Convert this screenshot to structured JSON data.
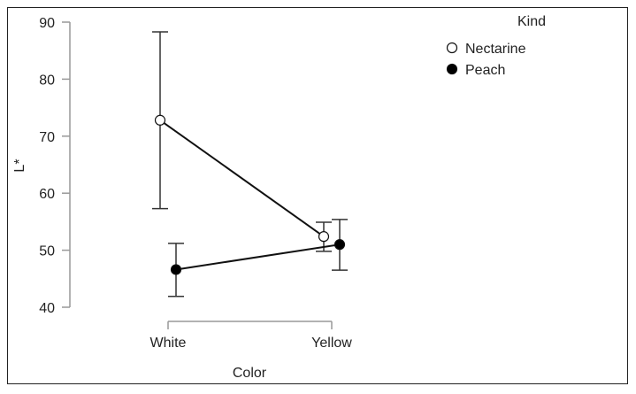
{
  "chart_data": {
    "type": "line",
    "title": "",
    "xlabel": "Color",
    "ylabel": "L*",
    "categories": [
      "White",
      "Yellow"
    ],
    "ylim": [
      40,
      90
    ],
    "yticks": [
      40,
      50,
      60,
      70,
      80,
      90
    ],
    "grid": false,
    "legend": {
      "title": "Kind",
      "placement": "top-right"
    },
    "series": [
      {
        "name": "Nectarine",
        "marker": "open-circle",
        "values": [
          72.8,
          52.4
        ],
        "error_low": [
          57.3,
          49.8
        ],
        "error_high": [
          88.3,
          54.9
        ]
      },
      {
        "name": "Peach",
        "marker": "filled-circle",
        "values": [
          46.6,
          51.0
        ],
        "error_low": [
          41.9,
          46.5
        ],
        "error_high": [
          51.2,
          55.4
        ]
      }
    ]
  }
}
